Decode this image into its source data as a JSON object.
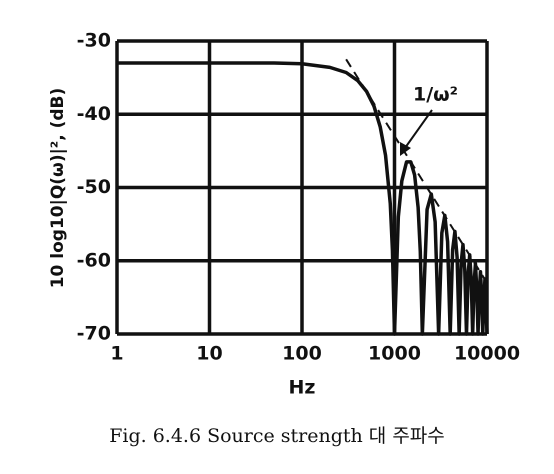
{
  "chart_data": {
    "type": "line",
    "xlabel": "Hz",
    "ylabel": "10 log10|Q(ω)|², (dB)",
    "caption": "Fig. 6.4.6  Source strength 대 주파수",
    "annotation": "1/ω²",
    "xscale": "log",
    "xlim": [
      1,
      10000
    ],
    "xticks": [
      1,
      10,
      100,
      1000,
      10000
    ],
    "ylim": [
      -70,
      -30
    ],
    "yticks": [
      -70,
      -60,
      -50,
      -40,
      -30
    ],
    "grid": true,
    "series": [
      {
        "color": "#111111",
        "style": "solid",
        "x": [
          1,
          10,
          50,
          100,
          200,
          300,
          400,
          500,
          600,
          700,
          800,
          900,
          950,
          1000,
          1100,
          1200,
          1350,
          1500,
          1650,
          1800,
          1900,
          2000,
          2250,
          2500,
          2750,
          3000,
          3250,
          3500,
          3750,
          4000,
          4250,
          4500,
          4750,
          5000,
          5250,
          5500,
          5750,
          6000,
          6250,
          6500,
          6750,
          7000,
          7250,
          7500,
          7750,
          8000,
          8250,
          8500,
          8750,
          9000,
          9250,
          9500,
          9750,
          10000
        ],
        "values": [
          -33,
          -33,
          -33,
          -33.1,
          -33.6,
          -34.3,
          -35.4,
          -36.9,
          -38.9,
          -41.7,
          -45.6,
          -52.2,
          -58.6,
          -70,
          -54,
          -49.1,
          -46.5,
          -46.5,
          -48.3,
          -52.7,
          -58.7,
          -70,
          -53,
          -50.9,
          -54.7,
          -70,
          -56.2,
          -53.8,
          -57.4,
          -70,
          -58.5,
          -56,
          -59.5,
          -70,
          -60.4,
          -57.8,
          -61.2,
          -70,
          -61.9,
          -59.2,
          -62.5,
          -70,
          -63.2,
          -60.4,
          -63.8,
          -70,
          -64.3,
          -61.5,
          -64.8,
          -70,
          -65.3,
          -62.5,
          -65.7,
          -70
        ]
      },
      {
        "color": "#111111",
        "style": "dashed",
        "x": [
          300,
          10000
        ],
        "values": [
          -32.5,
          -63
        ]
      }
    ]
  }
}
